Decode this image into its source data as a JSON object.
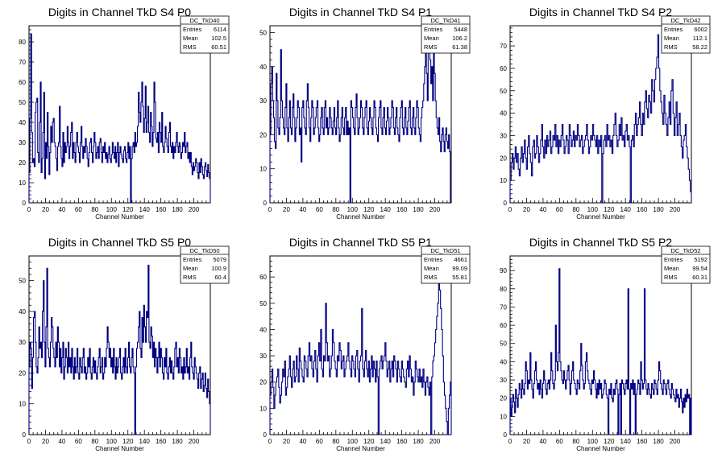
{
  "chart_data": [
    {
      "type": "histogram",
      "title": "Digits in Channel TkD S4 P0",
      "xlabel": "Channel Number",
      "ylabel": "",
      "xlim": [
        0,
        220
      ],
      "ylim": [
        0,
        88
      ],
      "xticks": [
        0,
        20,
        40,
        60,
        80,
        100,
        120,
        140,
        160,
        180,
        200
      ],
      "yticks": [
        0,
        10,
        20,
        30,
        40,
        50,
        60,
        70,
        80
      ],
      "stats": {
        "name": "DC_TkD40",
        "entries": "6114",
        "mean": "102.5",
        "rms": "60.51"
      },
      "values": [
        15,
        42,
        84,
        35,
        20,
        22,
        18,
        45,
        50,
        52,
        25,
        20,
        40,
        60,
        15,
        22,
        35,
        55,
        12,
        30,
        22,
        45,
        28,
        14,
        25,
        38,
        30,
        40,
        42,
        30,
        28,
        22,
        16,
        28,
        30,
        48,
        28,
        22,
        18,
        35,
        20,
        30,
        25,
        28,
        38,
        30,
        22,
        28,
        35,
        40,
        22,
        30,
        25,
        20,
        30,
        35,
        28,
        25,
        20,
        30,
        38,
        28,
        22,
        28,
        25,
        32,
        28,
        22,
        18,
        25,
        30,
        32,
        25,
        20,
        28,
        35,
        30,
        22,
        25,
        28,
        22,
        30,
        32,
        25,
        20,
        28,
        25,
        30,
        22,
        25,
        20,
        24,
        28,
        22,
        20,
        24,
        30,
        25,
        22,
        28,
        20,
        25,
        30,
        18,
        25,
        28,
        24,
        22,
        20,
        26,
        28,
        22,
        20,
        25,
        30,
        22,
        28,
        0,
        22,
        28,
        30,
        25,
        35,
        28,
        30,
        38,
        55,
        45,
        40,
        50,
        60,
        48,
        35,
        42,
        58,
        35,
        40,
        48,
        35,
        30,
        45,
        38,
        28,
        35,
        60,
        50,
        32,
        30,
        35,
        25,
        40,
        35,
        30,
        45,
        28,
        25,
        30,
        38,
        32,
        28,
        25,
        35,
        40,
        28,
        25,
        30,
        22,
        28,
        25,
        30,
        35,
        28,
        25,
        30,
        28,
        22,
        25,
        30,
        28,
        35,
        25,
        28,
        30,
        22,
        25,
        20,
        25,
        18,
        14,
        20,
        16,
        18,
        22,
        20,
        15,
        12,
        20,
        15,
        22,
        18,
        14,
        12,
        18,
        20,
        16,
        13,
        19,
        15,
        12
      ]
    },
    {
      "type": "histogram",
      "title": "Digits in Channel TkD S4 P1",
      "xlabel": "Channel Number",
      "ylabel": "",
      "xlim": [
        0,
        220
      ],
      "ylim": [
        0,
        52
      ],
      "xticks": [
        0,
        20,
        40,
        60,
        80,
        100,
        120,
        140,
        160,
        180,
        200
      ],
      "yticks": [
        0,
        10,
        20,
        30,
        40,
        50
      ],
      "stats": {
        "name": "DC_TkD41",
        "entries": "5448",
        "mean": "106.2",
        "rms": "61.38"
      },
      "values": [
        20,
        35,
        40,
        30,
        25,
        18,
        16,
        38,
        30,
        22,
        20,
        25,
        45,
        30,
        25,
        22,
        20,
        28,
        35,
        22,
        18,
        25,
        30,
        22,
        20,
        28,
        32,
        25,
        18,
        22,
        25,
        30,
        28,
        20,
        22,
        12,
        28,
        30,
        25,
        22,
        20,
        30,
        35,
        28,
        22,
        18,
        25,
        30,
        28,
        20,
        22,
        25,
        28,
        30,
        22,
        18,
        20,
        25,
        28,
        22,
        20,
        28,
        30,
        22,
        25,
        20,
        22,
        28,
        25,
        22,
        20,
        24,
        28,
        22,
        20,
        25,
        30,
        22,
        18,
        20,
        25,
        28,
        22,
        20,
        25,
        28,
        20,
        24,
        20,
        22,
        0,
        30,
        28,
        25,
        22,
        20,
        28,
        32,
        25,
        20,
        22,
        25,
        30,
        28,
        22,
        20,
        25,
        28,
        30,
        22,
        20,
        24,
        28,
        25,
        22,
        20,
        25,
        30,
        28,
        22,
        20,
        18,
        25,
        28,
        30,
        22,
        20,
        25,
        28,
        22,
        20,
        24,
        28,
        25,
        20,
        22,
        25,
        30,
        28,
        22,
        20,
        25,
        28,
        22,
        20,
        18,
        25,
        28,
        30,
        22,
        20,
        25,
        28,
        22,
        20,
        24,
        28,
        30,
        22,
        20,
        25,
        28,
        22,
        20,
        25,
        30,
        28,
        22,
        20,
        18,
        25,
        28,
        30,
        35,
        40,
        50,
        38,
        30,
        45,
        48,
        42,
        35,
        40,
        30,
        45,
        38,
        30,
        25,
        22,
        20,
        25,
        18,
        15,
        20,
        22,
        18,
        15,
        20,
        22,
        18,
        16,
        20,
        15,
        0
      ]
    },
    {
      "type": "histogram",
      "title": "Digits in Channel TkD S4 P2",
      "xlabel": "Channel Number",
      "ylabel": "",
      "xlim": [
        0,
        220
      ],
      "ylim": [
        0,
        79
      ],
      "xticks": [
        0,
        20,
        40,
        60,
        80,
        100,
        120,
        140,
        160,
        180,
        200
      ],
      "yticks": [
        0,
        10,
        20,
        30,
        40,
        50,
        60,
        70
      ],
      "stats": {
        "name": "DC_TkD42",
        "entries": "6002",
        "mean": "112.1",
        "rms": "58.22"
      },
      "values": [
        10,
        18,
        22,
        15,
        20,
        25,
        18,
        22,
        15,
        12,
        20,
        25,
        18,
        22,
        28,
        20,
        15,
        25,
        30,
        22,
        18,
        12,
        25,
        28,
        20,
        22,
        30,
        25,
        18,
        22,
        28,
        35,
        25,
        20,
        28,
        22,
        30,
        25,
        28,
        32,
        22,
        25,
        30,
        28,
        35,
        25,
        30,
        22,
        28,
        25,
        30,
        35,
        28,
        22,
        25,
        30,
        28,
        22,
        35,
        30,
        25,
        28,
        32,
        25,
        30,
        28,
        35,
        30,
        25,
        28,
        30,
        22,
        25,
        28,
        30,
        35,
        28,
        22,
        25,
        30,
        28,
        35,
        30,
        28,
        25,
        30,
        22,
        28,
        25,
        30,
        0,
        22,
        28,
        30,
        25,
        35,
        28,
        30,
        25,
        28,
        22,
        30,
        35,
        40,
        30,
        25,
        28,
        35,
        30,
        38,
        28,
        30,
        25,
        32,
        35,
        28,
        30,
        25,
        0,
        28,
        30,
        25,
        35,
        40,
        30,
        35,
        38,
        45,
        35,
        30,
        40,
        35,
        45,
        50,
        42,
        38,
        48,
        45,
        40,
        55,
        50,
        45,
        55,
        60,
        65,
        75,
        60,
        50,
        45,
        40,
        35,
        48,
        40,
        35,
        30,
        38,
        45,
        35,
        50,
        55,
        40,
        30,
        38,
        45,
        30,
        35,
        40,
        30,
        25,
        20,
        28,
        30,
        35,
        25,
        20,
        15,
        10,
        5
      ]
    },
    {
      "type": "histogram",
      "title": "Digits in Channel TkD S5 P0",
      "xlabel": "Channel Number",
      "ylabel": "",
      "xlim": [
        0,
        220
      ],
      "ylim": [
        0,
        58
      ],
      "xticks": [
        0,
        20,
        40,
        60,
        80,
        100,
        120,
        140,
        160,
        180,
        200
      ],
      "yticks": [
        0,
        10,
        20,
        30,
        40,
        50
      ],
      "stats": {
        "name": "DC_TkD50",
        "entries": "5079",
        "mean": "100.9",
        "rms": "60.4"
      },
      "values": [
        22,
        30,
        28,
        15,
        25,
        38,
        40,
        30,
        22,
        20,
        25,
        35,
        28,
        30,
        25,
        40,
        50,
        30,
        22,
        35,
        54,
        28,
        25,
        22,
        30,
        38,
        35,
        28,
        25,
        22,
        30,
        25,
        35,
        30,
        22,
        28,
        20,
        25,
        30,
        18,
        22,
        28,
        25,
        20,
        30,
        22,
        25,
        20,
        28,
        22,
        18,
        25,
        20,
        22,
        28,
        20,
        18,
        25,
        22,
        20,
        25,
        28,
        20,
        22,
        18,
        20,
        25,
        22,
        28,
        20,
        18,
        22,
        25,
        20,
        24,
        20,
        18,
        22,
        25,
        28,
        20,
        22,
        25,
        18,
        20,
        25,
        22,
        28,
        35,
        30,
        25,
        28,
        22,
        25,
        20,
        28,
        22,
        18,
        25,
        20,
        22,
        25,
        28,
        20,
        18,
        22,
        25,
        20,
        28,
        22,
        20,
        25,
        30,
        22,
        20,
        25,
        28,
        22,
        20,
        0,
        22,
        28,
        30,
        35,
        40,
        28,
        25,
        38,
        30,
        42,
        35,
        30,
        40,
        38,
        55,
        30,
        28,
        35,
        32,
        25,
        30,
        22,
        28,
        25,
        20,
        25,
        30,
        22,
        28,
        25,
        20,
        18,
        25,
        22,
        28,
        20,
        18,
        22,
        25,
        20,
        24,
        20,
        18,
        22,
        28,
        30,
        22,
        25,
        20,
        28,
        25,
        20,
        22,
        18,
        25,
        20,
        22,
        28,
        20,
        22,
        18,
        25,
        30,
        22,
        20,
        18,
        25,
        22,
        20,
        18,
        15,
        20,
        22,
        15,
        18,
        20,
        14,
        16,
        20,
        15,
        12,
        18,
        14,
        10
      ]
    },
    {
      "type": "histogram",
      "title": "Digits in Channel TkD S5 P1",
      "xlabel": "Channel Number",
      "ylabel": "",
      "xlim": [
        0,
        220
      ],
      "ylim": [
        0,
        68
      ],
      "xticks": [
        0,
        20,
        40,
        60,
        80,
        100,
        120,
        140,
        160,
        180,
        200
      ],
      "yticks": [
        0,
        10,
        20,
        30,
        40,
        50,
        60
      ],
      "stats": {
        "name": "DC_TkD51",
        "entries": "4661",
        "mean": "99.09",
        "rms": "55.81"
      },
      "values": [
        15,
        20,
        25,
        18,
        10,
        15,
        20,
        22,
        25,
        18,
        12,
        15,
        20,
        25,
        22,
        28,
        15,
        18,
        22,
        25,
        30,
        22,
        18,
        25,
        28,
        20,
        22,
        30,
        25,
        20,
        33,
        28,
        25,
        22,
        20,
        30,
        28,
        25,
        22,
        30,
        35,
        28,
        30,
        25,
        22,
        28,
        32,
        25,
        20,
        30,
        35,
        28,
        40,
        25,
        22,
        30,
        28,
        50,
        35,
        28,
        30,
        22,
        25,
        30,
        40,
        35,
        28,
        25,
        22,
        30,
        28,
        35,
        32,
        25,
        28,
        30,
        22,
        25,
        28,
        30,
        35,
        28,
        25,
        22,
        30,
        28,
        25,
        22,
        30,
        32,
        25,
        20,
        28,
        30,
        48,
        25,
        22,
        28,
        32,
        25,
        22,
        28,
        20,
        25,
        30,
        22,
        28,
        25,
        20,
        28,
        22,
        0,
        25,
        28,
        30,
        25,
        28,
        30,
        35,
        28,
        22,
        25,
        28,
        20,
        25,
        28,
        22,
        30,
        28,
        25,
        20,
        28,
        25,
        22,
        20,
        28,
        25,
        22,
        20,
        18,
        25,
        28,
        22,
        30,
        25,
        20,
        22,
        15,
        20,
        28,
        25,
        22,
        20,
        25,
        20,
        22,
        18,
        25,
        20,
        15,
        20,
        22,
        18,
        15,
        20,
        0,
        22,
        28,
        30,
        35,
        40,
        45,
        50,
        58,
        55,
        48,
        40,
        30,
        20,
        15,
        10,
        5,
        0,
        10,
        15,
        20
      ]
    },
    {
      "type": "histogram",
      "title": "Digits in Channel TkD S5 P2",
      "xlabel": "Channel Number",
      "ylabel": "",
      "xlim": [
        0,
        220
      ],
      "ylim": [
        0,
        98
      ],
      "xticks": [
        0,
        20,
        40,
        60,
        80,
        100,
        120,
        140,
        160,
        180,
        200
      ],
      "yticks": [
        0,
        10,
        20,
        30,
        40,
        50,
        60,
        70,
        80,
        90
      ],
      "stats": {
        "name": "DC_TkD52",
        "entries": "5192",
        "mean": "99.54",
        "rms": "60.31"
      },
      "values": [
        20,
        10,
        15,
        22,
        18,
        12,
        25,
        20,
        15,
        22,
        28,
        25,
        20,
        30,
        25,
        22,
        28,
        40,
        35,
        25,
        30,
        28,
        45,
        30,
        25,
        20,
        28,
        35,
        40,
        30,
        25,
        28,
        22,
        30,
        25,
        20,
        28,
        35,
        30,
        25,
        22,
        28,
        30,
        25,
        30,
        45,
        35,
        28,
        25,
        30,
        60,
        40,
        35,
        45,
        91,
        40,
        35,
        30,
        28,
        35,
        30,
        25,
        30,
        35,
        38,
        30,
        22,
        28,
        35,
        40,
        30,
        28,
        25,
        22,
        30,
        28,
        25,
        35,
        50,
        38,
        30,
        25,
        28,
        40,
        45,
        35,
        30,
        28,
        25,
        22,
        30,
        28,
        35,
        30,
        25,
        20,
        28,
        22,
        30,
        25,
        28,
        20,
        22,
        25,
        30,
        28,
        22,
        20,
        0,
        25,
        22,
        28,
        20,
        18,
        25,
        22,
        28,
        30,
        25,
        0,
        22,
        28,
        0,
        30,
        28,
        25,
        22,
        28,
        30,
        25,
        80,
        25,
        0,
        28,
        25,
        30,
        22,
        28,
        0,
        22,
        25,
        30,
        28,
        22,
        40,
        30,
        25,
        28,
        80,
        30,
        25,
        22,
        28,
        25,
        22,
        20,
        28,
        25,
        22,
        30,
        28,
        25,
        22,
        30,
        40,
        35,
        28,
        25,
        22,
        30,
        28,
        25,
        22,
        28,
        30,
        25,
        22,
        20,
        28,
        25,
        22,
        20,
        18,
        25,
        20,
        22,
        15,
        20,
        25,
        18,
        12,
        20,
        15,
        22,
        18,
        25,
        20,
        22,
        0,
        20
      ]
    }
  ]
}
